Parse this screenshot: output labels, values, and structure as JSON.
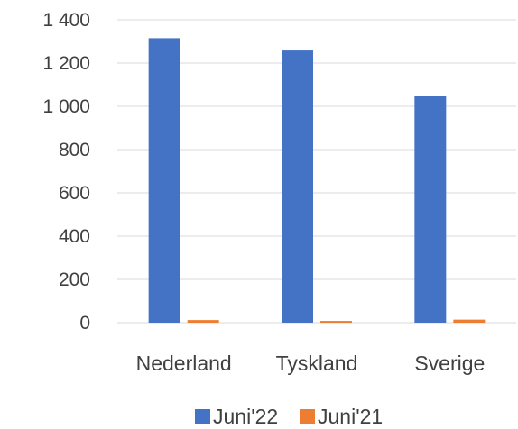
{
  "chart_data": {
    "type": "bar",
    "categories": [
      "Nederland",
      "Tyskland",
      "Sverige"
    ],
    "series": [
      {
        "name": "Juni'22",
        "values": [
          1315,
          1258,
          1048
        ],
        "color": "#4472C4"
      },
      {
        "name": "Juni'21",
        "values": [
          12,
          8,
          14
        ],
        "color": "#ED7D31"
      }
    ],
    "ylim": [
      0,
      1400
    ],
    "yticks": [
      0,
      200,
      400,
      600,
      800,
      1000,
      1200,
      1400
    ],
    "ytick_labels": [
      "0",
      "200",
      "400",
      "600",
      "800",
      "1 000",
      "1 200",
      "1 400"
    ],
    "grid": true,
    "legend_position": "bottom"
  }
}
